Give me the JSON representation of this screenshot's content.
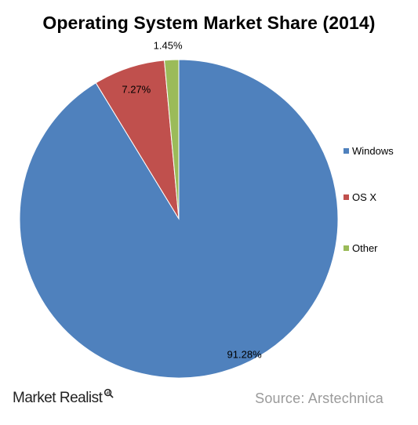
{
  "chart_data": {
    "type": "pie",
    "title": "Operating System Market Share (2014)",
    "slices": [
      {
        "label": "Windows",
        "value": 91.28,
        "display": "91.28%",
        "color": "#4f81bd"
      },
      {
        "label": "OS X",
        "value": 7.27,
        "display": "7.27%",
        "color": "#c0504d"
      },
      {
        "label": "Other",
        "value": 1.45,
        "display": "1.45%",
        "color": "#9bbb59"
      }
    ],
    "legend_position": "right"
  },
  "footer": {
    "brand": "Market Realist",
    "source": "Source: Arstechnica"
  }
}
